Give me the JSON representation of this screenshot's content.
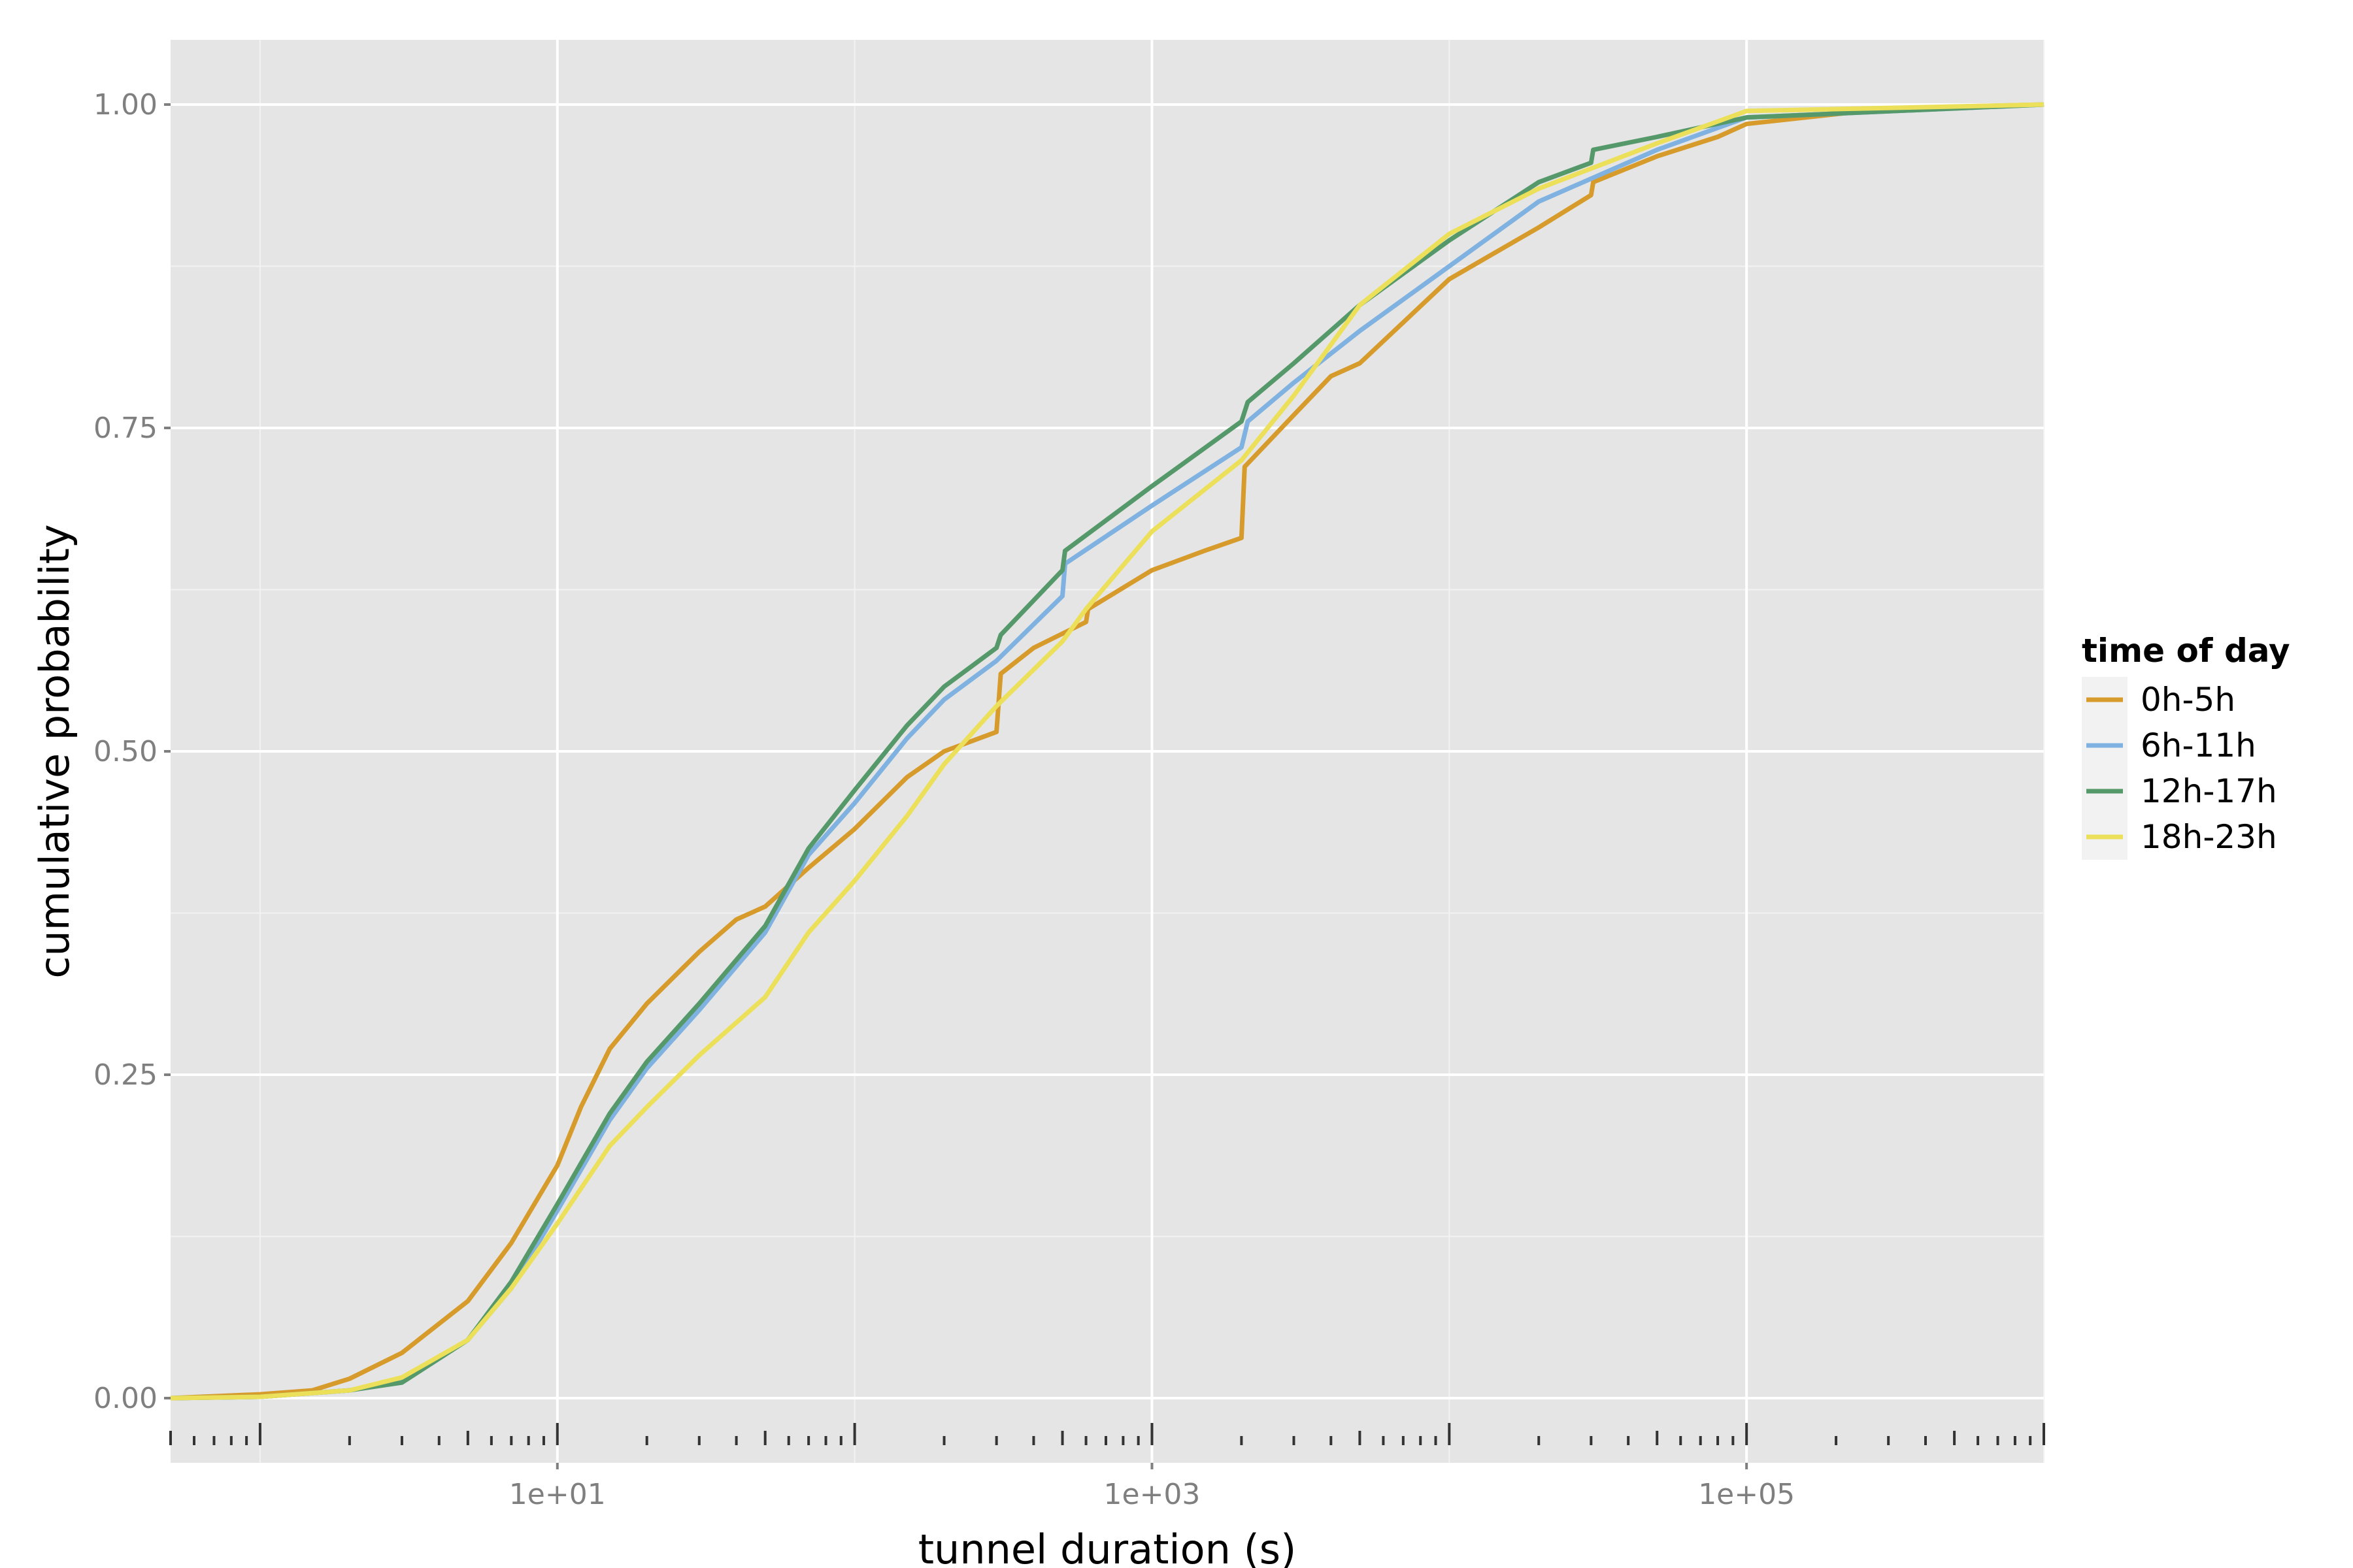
{
  "chart_data": {
    "type": "line",
    "title": "",
    "xlabel": "tunnel duration (s)",
    "ylabel": "cumulative probability",
    "x_scale": "log10",
    "xlim": [
      0.5,
      1000000
    ],
    "ylim": [
      -0.05,
      1.05
    ],
    "x_ticks": [
      {
        "value": 10,
        "label": "1e+01"
      },
      {
        "value": 1000,
        "label": "1e+03"
      },
      {
        "value": 100000,
        "label": "1e+05"
      }
    ],
    "y_ticks": [
      {
        "value": 0,
        "label": "0.00"
      },
      {
        "value": 0.25,
        "label": "0.25"
      },
      {
        "value": 0.5,
        "label": "0.50"
      },
      {
        "value": 0.75,
        "label": "0.75"
      },
      {
        "value": 1,
        "label": "1.00"
      }
    ],
    "grid": true,
    "background": "#e5e5e5",
    "legend": {
      "title": "time of day",
      "position": "right"
    },
    "series": [
      {
        "name": "0h-5h",
        "color": "#d69b2a",
        "points": [
          [
            0.5,
            0.0
          ],
          [
            1,
            0.003
          ],
          [
            1.5,
            0.006
          ],
          [
            2,
            0.015
          ],
          [
            3,
            0.035
          ],
          [
            5,
            0.075
          ],
          [
            7,
            0.12
          ],
          [
            10,
            0.18
          ],
          [
            12,
            0.225
          ],
          [
            15,
            0.27
          ],
          [
            20,
            0.305
          ],
          [
            30,
            0.345
          ],
          [
            40,
            0.37
          ],
          [
            50,
            0.38
          ],
          [
            70,
            0.41
          ],
          [
            100,
            0.44
          ],
          [
            150,
            0.48
          ],
          [
            200,
            0.5
          ],
          [
            300,
            0.515
          ],
          [
            310,
            0.56
          ],
          [
            400,
            0.58
          ],
          [
            600,
            0.6
          ],
          [
            610,
            0.61
          ],
          [
            1000,
            0.64
          ],
          [
            1500,
            0.655
          ],
          [
            2000,
            0.665
          ],
          [
            2050,
            0.72
          ],
          [
            3000,
            0.76
          ],
          [
            4000,
            0.79
          ],
          [
            5000,
            0.8
          ],
          [
            10000,
            0.865
          ],
          [
            20000,
            0.905
          ],
          [
            30000,
            0.93
          ],
          [
            30500,
            0.94
          ],
          [
            50000,
            0.96
          ],
          [
            80000,
            0.975
          ],
          [
            100000,
            0.985
          ],
          [
            300000,
            0.997
          ],
          [
            1000000,
            1.0
          ]
        ]
      },
      {
        "name": "6h-11h",
        "color": "#7fb2e0",
        "points": [
          [
            0.5,
            0.0
          ],
          [
            1,
            0.001
          ],
          [
            2,
            0.006
          ],
          [
            3,
            0.014
          ],
          [
            5,
            0.045
          ],
          [
            7,
            0.085
          ],
          [
            10,
            0.145
          ],
          [
            15,
            0.215
          ],
          [
            20,
            0.255
          ],
          [
            30,
            0.3
          ],
          [
            50,
            0.36
          ],
          [
            70,
            0.42
          ],
          [
            100,
            0.46
          ],
          [
            150,
            0.51
          ],
          [
            200,
            0.54
          ],
          [
            300,
            0.57
          ],
          [
            500,
            0.62
          ],
          [
            510,
            0.645
          ],
          [
            1000,
            0.69
          ],
          [
            2000,
            0.735
          ],
          [
            2100,
            0.755
          ],
          [
            3000,
            0.785
          ],
          [
            5000,
            0.825
          ],
          [
            10000,
            0.875
          ],
          [
            20000,
            0.925
          ],
          [
            50000,
            0.965
          ],
          [
            100000,
            0.99
          ],
          [
            1000000,
            1.0
          ]
        ]
      },
      {
        "name": "12h-17h",
        "color": "#55996b",
        "points": [
          [
            0.5,
            0.0
          ],
          [
            1,
            0.001
          ],
          [
            2,
            0.006
          ],
          [
            3,
            0.012
          ],
          [
            5,
            0.045
          ],
          [
            7,
            0.09
          ],
          [
            10,
            0.15
          ],
          [
            15,
            0.22
          ],
          [
            20,
            0.26
          ],
          [
            30,
            0.305
          ],
          [
            50,
            0.365
          ],
          [
            70,
            0.425
          ],
          [
            100,
            0.47
          ],
          [
            150,
            0.52
          ],
          [
            200,
            0.55
          ],
          [
            300,
            0.58
          ],
          [
            310,
            0.59
          ],
          [
            500,
            0.64
          ],
          [
            510,
            0.655
          ],
          [
            1000,
            0.705
          ],
          [
            2000,
            0.755
          ],
          [
            2100,
            0.77
          ],
          [
            3000,
            0.8
          ],
          [
            5000,
            0.845
          ],
          [
            10000,
            0.895
          ],
          [
            20000,
            0.94
          ],
          [
            30000,
            0.955
          ],
          [
            30500,
            0.965
          ],
          [
            50000,
            0.975
          ],
          [
            100000,
            0.99
          ],
          [
            1000000,
            1.0
          ]
        ]
      },
      {
        "name": "18h-23h",
        "color": "#ece05a",
        "points": [
          [
            0.5,
            0.0
          ],
          [
            1,
            0.001
          ],
          [
            2,
            0.006
          ],
          [
            3,
            0.016
          ],
          [
            5,
            0.045
          ],
          [
            7,
            0.085
          ],
          [
            10,
            0.135
          ],
          [
            15,
            0.195
          ],
          [
            20,
            0.225
          ],
          [
            30,
            0.265
          ],
          [
            50,
            0.31
          ],
          [
            70,
            0.36
          ],
          [
            100,
            0.4
          ],
          [
            150,
            0.45
          ],
          [
            200,
            0.49
          ],
          [
            300,
            0.535
          ],
          [
            500,
            0.585
          ],
          [
            600,
            0.61
          ],
          [
            1000,
            0.67
          ],
          [
            2000,
            0.725
          ],
          [
            3000,
            0.775
          ],
          [
            5000,
            0.845
          ],
          [
            10000,
            0.9
          ],
          [
            20000,
            0.935
          ],
          [
            50000,
            0.97
          ],
          [
            100000,
            0.995
          ],
          [
            1000000,
            1.0
          ]
        ]
      }
    ]
  }
}
